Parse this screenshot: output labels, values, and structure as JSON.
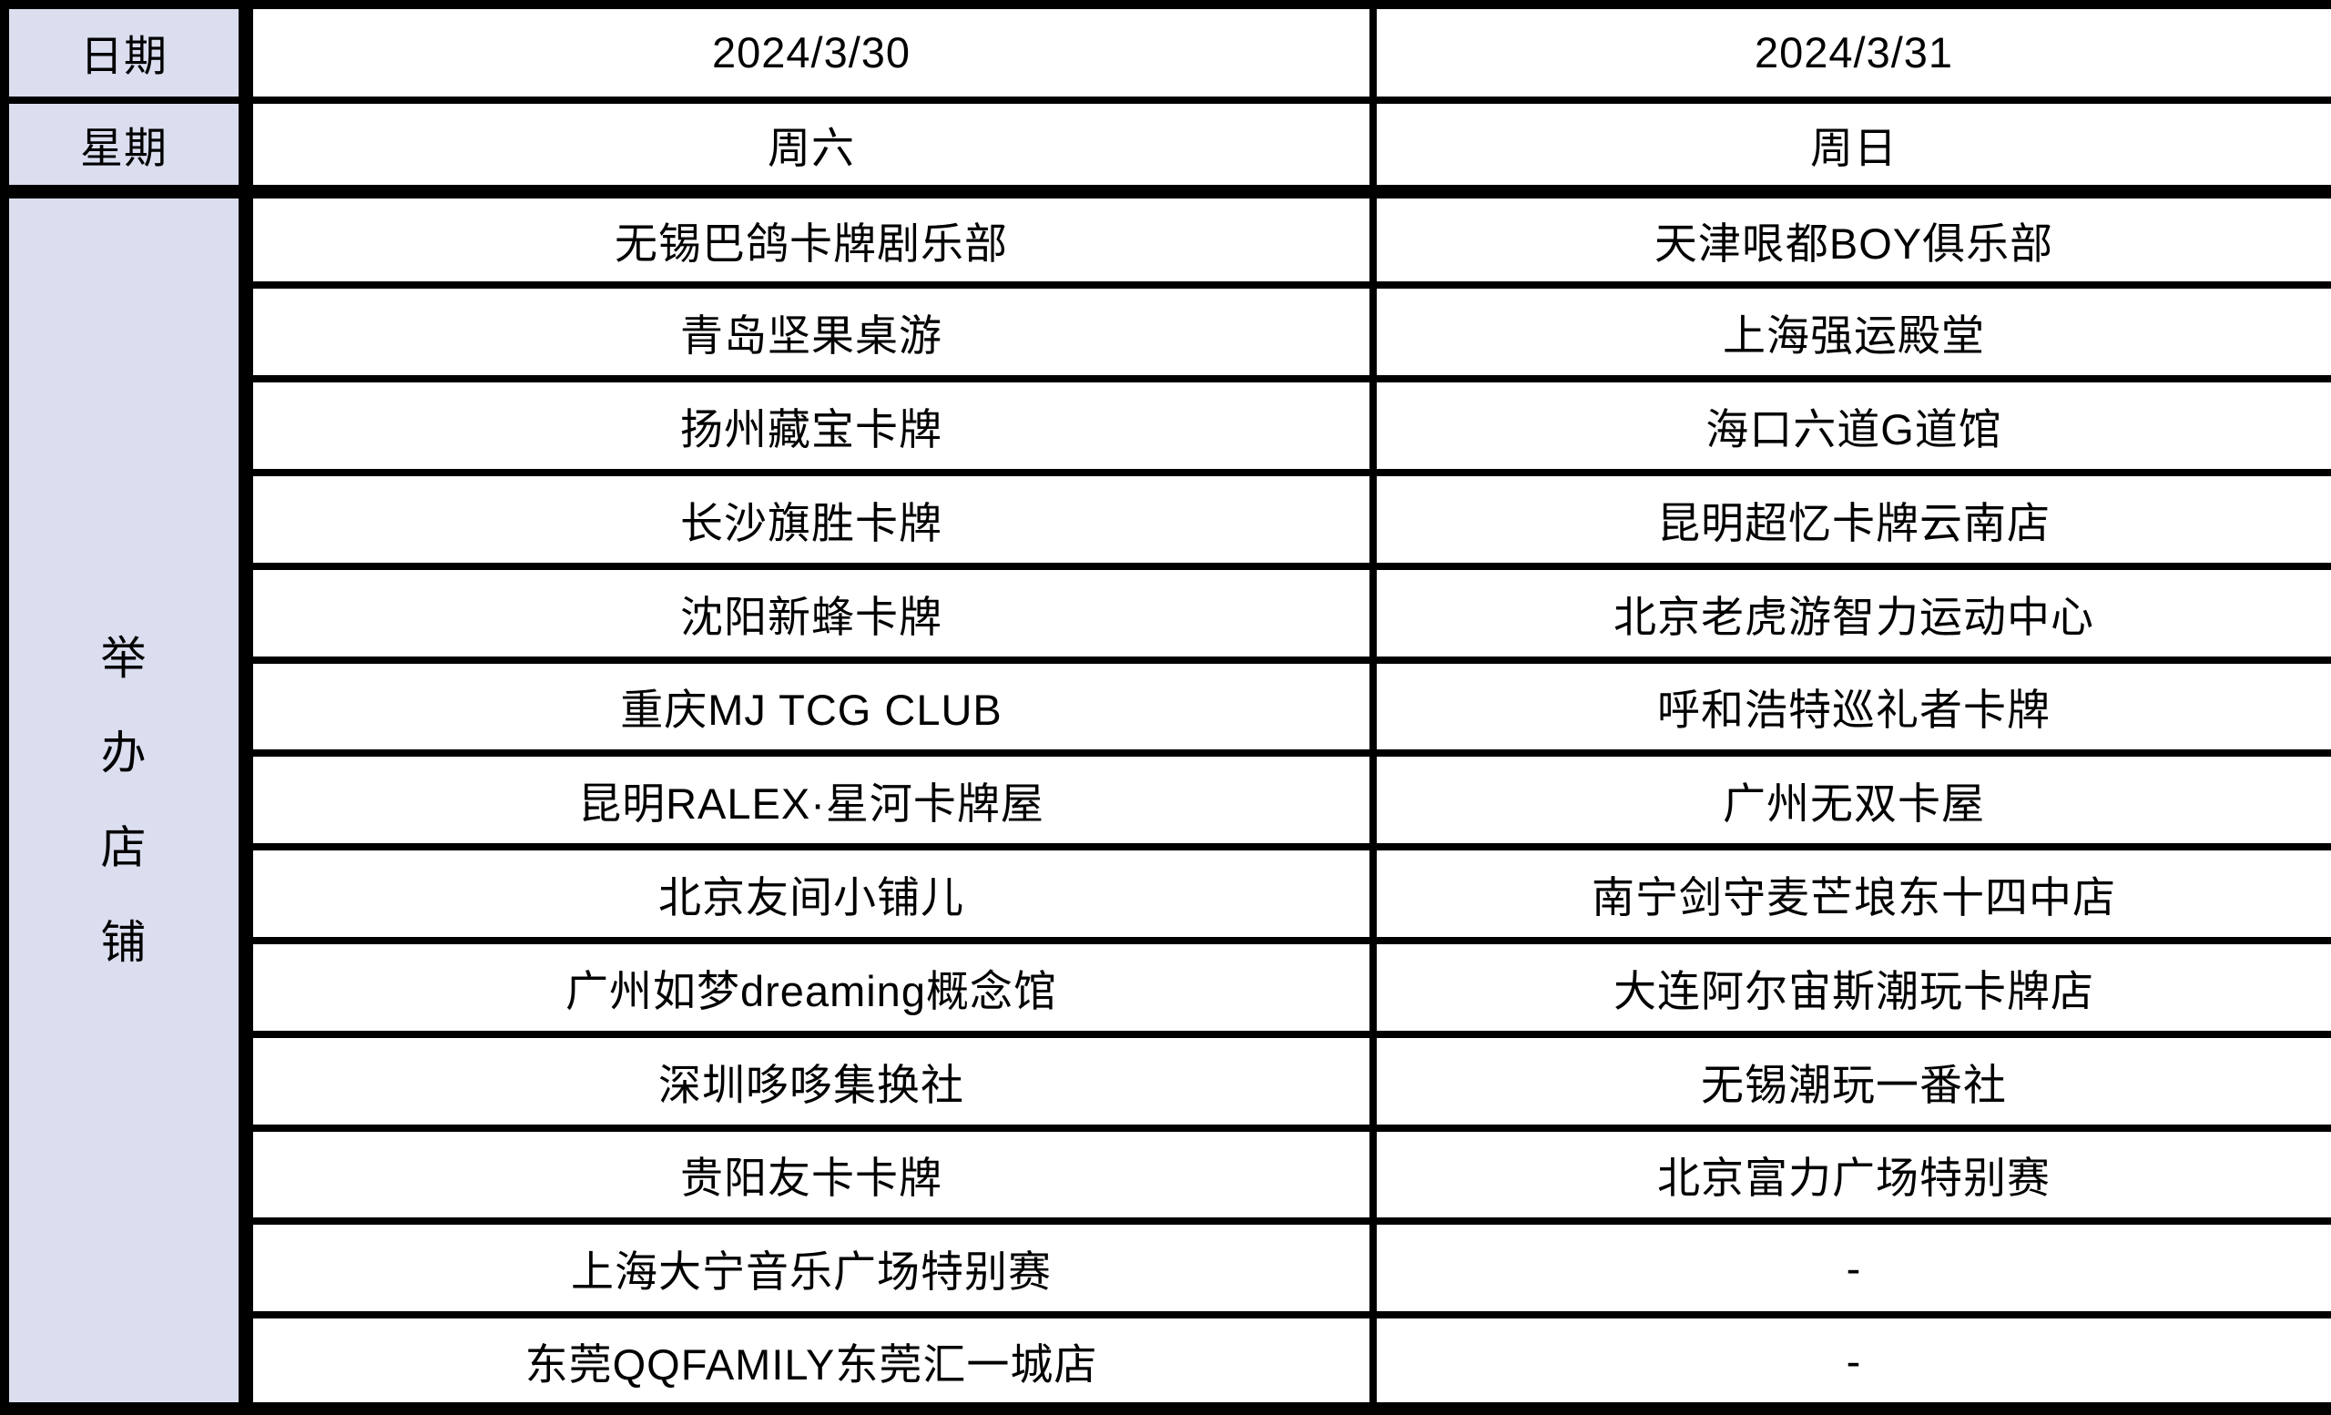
{
  "header": {
    "date_label": "日期",
    "weekday_label": "星期",
    "date_saturday": "2024/3/30",
    "date_sunday": "2024/3/31",
    "weekday_saturday": "周六",
    "weekday_sunday": "周日"
  },
  "host_label": "举办店铺",
  "host_label_chars": [
    "举",
    "办",
    "店",
    "铺"
  ],
  "saturday_shops": [
    "无锡巴鸽卡牌剧乐部",
    "青岛坚果桌游",
    "扬州藏宝卡牌",
    "长沙旗胜卡牌",
    "沈阳新蜂卡牌",
    "重庆MJ TCG CLUB",
    "昆明RALEX·星河卡牌屋",
    "北京友间小铺儿",
    "广州如梦dreaming概念馆",
    "深圳哆哆集换社",
    "贵阳友卡卡牌",
    "上海大宁音乐广场特别赛",
    "东莞QQFAMILY东莞汇一城店"
  ],
  "sunday_shops": [
    "天津哏都BOY俱乐部",
    "上海强运殿堂",
    "海口六道G道馆",
    "昆明超忆卡牌云南店",
    "北京老虎游智力运动中心",
    "呼和浩特巡礼者卡牌",
    "广州无双卡屋",
    "南宁剑守麦芒埌东十四中店",
    "大连阿尔宙斯潮玩卡牌店",
    "无锡潮玩一番社",
    "北京富力广场特别赛",
    "-",
    "-"
  ],
  "colors": {
    "header_bg": "#dadeef",
    "cell_bg": "#ffffff",
    "border": "#000000",
    "text": "#000000"
  }
}
